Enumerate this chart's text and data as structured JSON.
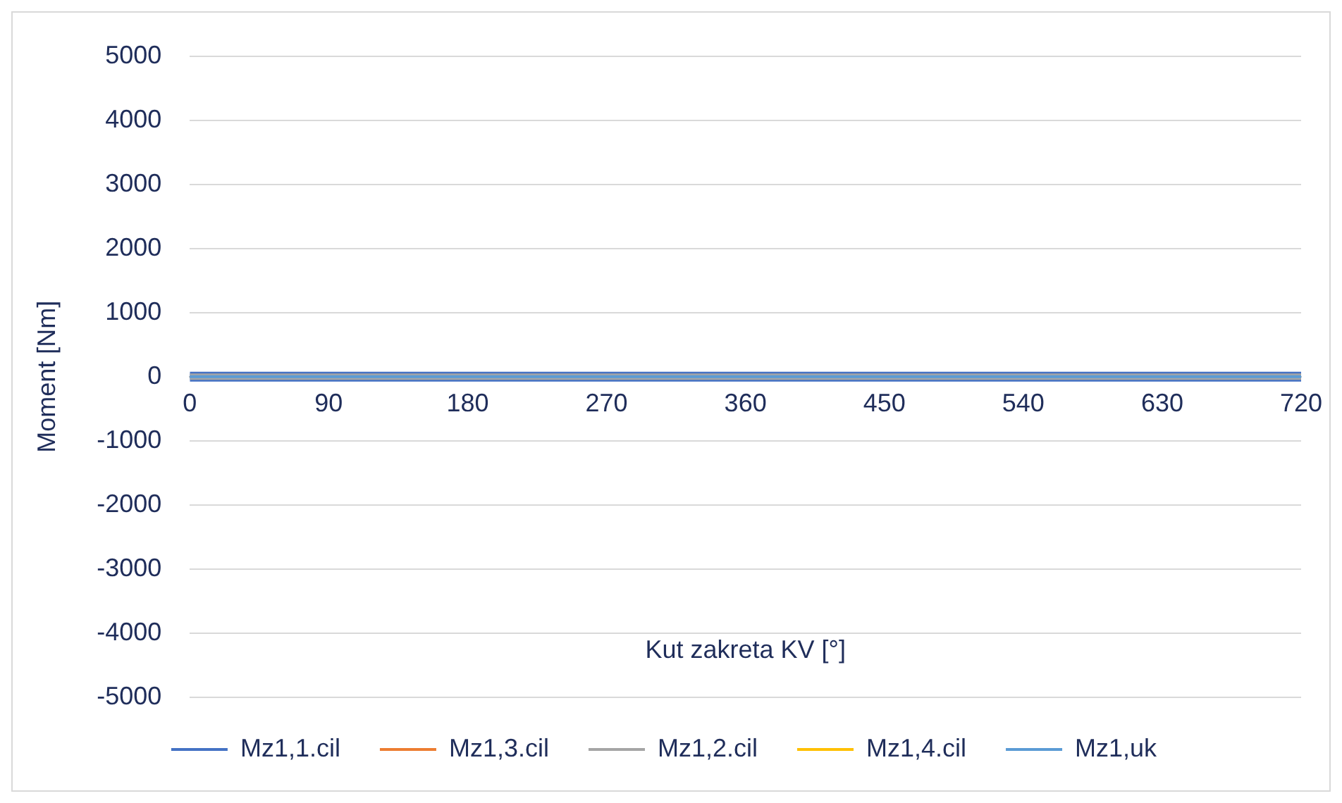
{
  "chart_data": {
    "type": "line",
    "xlabel": "Kut zakreta KV [°]",
    "ylabel": "Moment [Nm]",
    "x": [
      0,
      720
    ],
    "xlim": [
      0,
      720
    ],
    "xticks": [
      0,
      90,
      180,
      270,
      360,
      450,
      540,
      630,
      720
    ],
    "ylim": [
      -5000,
      5000
    ],
    "yticks": [
      -5000,
      -4000,
      -3000,
      -2000,
      -1000,
      0,
      1000,
      2000,
      3000,
      4000,
      5000
    ],
    "grid": "y",
    "legend": "bottom",
    "marker": "none",
    "line_style": "solid",
    "series": [
      {
        "name": "Mz1,1.cil",
        "color": "#4472c4",
        "values": [
          0,
          0
        ]
      },
      {
        "name": "Mz1,3.cil",
        "color": "#ed7d31",
        "values": [
          null,
          null
        ]
      },
      {
        "name": "Mz1,2.cil",
        "color": "#a5a5a5",
        "values": [
          0,
          0
        ]
      },
      {
        "name": "Mz1,4.cil",
        "color": "#ffc000",
        "values": [
          null,
          null
        ]
      },
      {
        "name": "Mz1,uk",
        "color": "#5b9bd5",
        "values": [
          0,
          0
        ]
      }
    ]
  }
}
